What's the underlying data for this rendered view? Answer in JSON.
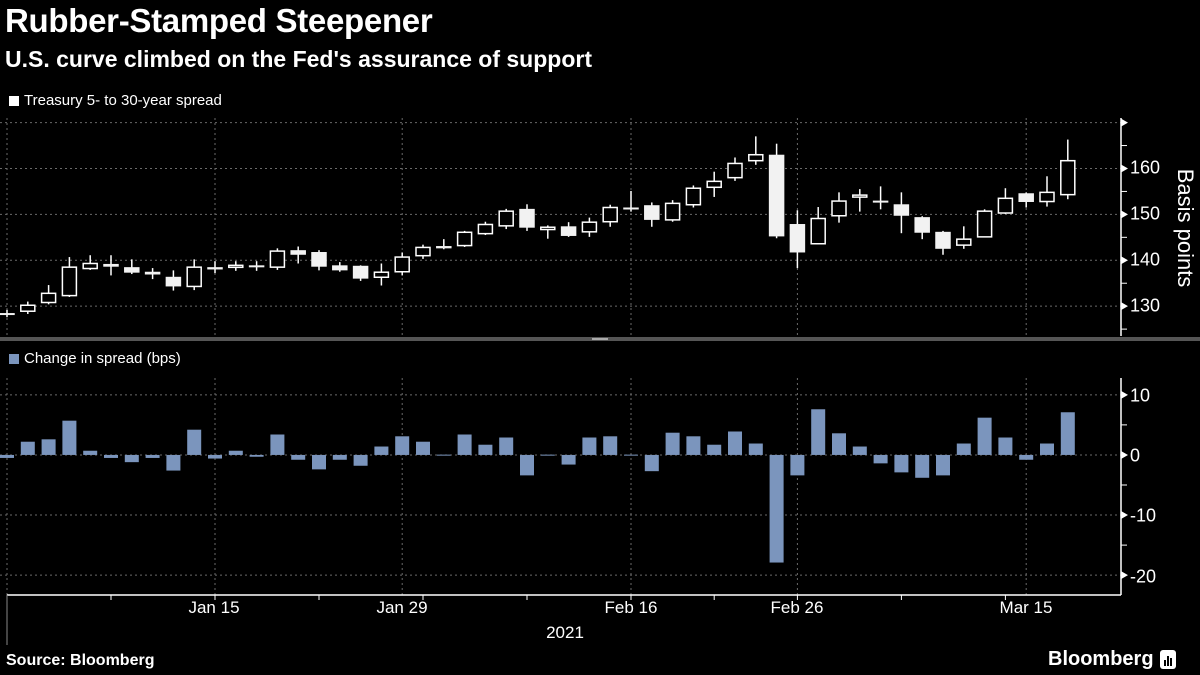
{
  "title": "Rubber-Stamped Steepener",
  "subtitle": "U.S. curve climbed on the Fed's assurance of support",
  "source": "Source: Bloomberg",
  "logo": "Bloomberg",
  "colors": {
    "background": "#000000",
    "candle": "#ffffff",
    "bar": "#7b95bd",
    "grid": "#6a6a6a"
  },
  "chart_data": [
    {
      "type": "candlestick",
      "legend": "Treasury 5- to 30-year spread",
      "ylabel": "Basis points",
      "ylim": [
        123.5,
        171
      ],
      "yticks": [
        130,
        140,
        150,
        160
      ],
      "grid": true,
      "legend_placement": "top-left",
      "columns": [
        "date",
        "open",
        "high",
        "low",
        "close"
      ],
      "candles": [
        [
          "2020-12-31",
          128.5,
          129.2,
          127.6,
          128.2
        ],
        [
          "2021-01-04",
          128.9,
          131.0,
          128.3,
          130.2
        ],
        [
          "2021-01-05",
          130.8,
          134.6,
          130.4,
          132.8
        ],
        [
          "2021-01-06",
          132.3,
          140.7,
          132.0,
          138.5
        ],
        [
          "2021-01-07",
          138.2,
          141.1,
          137.9,
          139.3
        ],
        [
          "2021-01-08",
          139.2,
          141.1,
          136.7,
          138.6
        ],
        [
          "2021-01-11",
          138.5,
          140.2,
          137.0,
          137.3
        ],
        [
          "2021-01-12",
          137.5,
          138.3,
          135.9,
          136.9
        ],
        [
          "2021-01-13",
          136.4,
          137.8,
          133.4,
          134.3
        ],
        [
          "2021-01-14",
          134.3,
          140.2,
          133.5,
          138.5
        ],
        [
          "2021-01-15",
          138.5,
          139.8,
          137.2,
          138.0
        ],
        [
          "2021-01-19",
          138.7,
          139.8,
          137.7,
          138.9
        ],
        [
          "2021-01-20",
          138.9,
          139.8,
          137.7,
          138.5
        ],
        [
          "2021-01-21",
          138.5,
          142.6,
          137.9,
          142.0
        ],
        [
          "2021-01-22",
          142.2,
          143.0,
          139.3,
          141.2
        ],
        [
          "2021-01-25",
          141.8,
          142.2,
          137.8,
          138.6
        ],
        [
          "2021-01-26",
          138.9,
          139.6,
          137.5,
          137.8
        ],
        [
          "2021-01-27",
          138.8,
          138.9,
          135.5,
          136.0
        ],
        [
          "2021-01-28",
          136.3,
          139.3,
          134.5,
          137.4
        ],
        [
          "2021-01-29",
          137.5,
          141.7,
          136.7,
          140.7
        ],
        [
          "2021-02-01",
          141.0,
          143.4,
          140.3,
          142.8
        ],
        [
          "2021-02-02",
          143.1,
          144.6,
          142.4,
          142.6
        ],
        [
          "2021-02-03",
          143.2,
          146.4,
          142.9,
          146.1
        ],
        [
          "2021-02-04",
          145.8,
          148.4,
          145.5,
          147.8
        ],
        [
          "2021-02-05",
          147.5,
          151.2,
          146.8,
          150.7
        ],
        [
          "2021-02-08",
          151.2,
          152.2,
          146.4,
          147.1
        ],
        [
          "2021-02-09",
          146.7,
          147.6,
          144.7,
          147.2
        ],
        [
          "2021-02-10",
          147.4,
          148.3,
          145.1,
          145.3
        ],
        [
          "2021-02-11",
          146.2,
          149.3,
          145.1,
          148.3
        ],
        [
          "2021-02-12",
          148.4,
          152.1,
          147.3,
          151.5
        ],
        [
          "2021-02-16",
          151.5,
          155.1,
          150.6,
          151.3
        ],
        [
          "2021-02-17",
          152.0,
          152.6,
          147.3,
          148.8
        ],
        [
          "2021-02-18",
          148.8,
          153.1,
          148.4,
          152.4
        ],
        [
          "2021-02-19",
          152.1,
          156.3,
          151.5,
          155.7
        ],
        [
          "2021-02-22",
          155.9,
          159.3,
          153.8,
          157.2
        ],
        [
          "2021-02-23",
          158.0,
          162.4,
          157.3,
          161.1
        ],
        [
          "2021-02-24",
          161.7,
          167.0,
          160.8,
          163.0
        ],
        [
          "2021-02-25",
          163.0,
          165.4,
          144.8,
          145.2
        ],
        [
          "2021-02-26",
          147.9,
          150.9,
          138.3,
          141.7
        ],
        [
          "2021-03-01",
          143.6,
          151.6,
          143.6,
          149.1
        ],
        [
          "2021-03-02",
          149.7,
          154.8,
          148.2,
          152.9
        ],
        [
          "2021-03-03",
          153.8,
          155.5,
          150.6,
          154.2
        ],
        [
          "2021-03-04",
          153.0,
          156.1,
          151.1,
          152.8
        ],
        [
          "2021-03-05",
          152.2,
          154.8,
          145.9,
          149.7
        ],
        [
          "2021-03-08",
          149.4,
          149.6,
          144.6,
          146.0
        ],
        [
          "2021-03-09",
          146.2,
          146.4,
          141.2,
          142.5
        ],
        [
          "2021-03-10",
          143.3,
          147.4,
          142.5,
          144.6
        ],
        [
          "2021-03-11",
          145.1,
          151.1,
          145.1,
          150.7
        ],
        [
          "2021-03-12",
          150.3,
          155.7,
          150.1,
          153.5
        ],
        [
          "2021-03-15",
          154.6,
          154.8,
          151.5,
          152.7
        ],
        [
          "2021-03-16",
          152.8,
          158.3,
          151.7,
          154.8
        ],
        [
          "2021-03-17",
          154.3,
          166.3,
          153.3,
          161.7
        ]
      ]
    },
    {
      "type": "bar",
      "legend": "Change in spread (bps)",
      "ylim": [
        -23.3,
        12.8
      ],
      "yticks": [
        10,
        0,
        -10,
        -20
      ],
      "grid": true,
      "legend_placement": "top-left",
      "values": [
        -0.5,
        2.2,
        2.6,
        5.7,
        0.7,
        -0.5,
        -1.2,
        -0.5,
        -2.6,
        4.2,
        -0.6,
        0.7,
        -0.3,
        3.4,
        -0.8,
        -2.4,
        -0.8,
        -1.8,
        1.4,
        3.1,
        2.2,
        0.05,
        3.4,
        1.7,
        2.9,
        -3.4,
        0.05,
        -1.6,
        2.9,
        3.1,
        0.05,
        -2.7,
        3.7,
        3.1,
        1.7,
        3.9,
        1.9,
        -17.9,
        -3.4,
        7.6,
        3.6,
        1.4,
        -1.4,
        -2.9,
        -3.8,
        -3.4,
        1.9,
        6.2,
        2.9,
        -0.8,
        1.9,
        7.1
      ]
    }
  ],
  "xaxis": {
    "ticks": [
      {
        "label": "Jan 15",
        "date": "2021-01-15"
      },
      {
        "label": "Jan 29",
        "date": "2021-01-29"
      },
      {
        "label": "Feb 16",
        "date": "2021-02-16"
      },
      {
        "label": "Feb 26",
        "date": "2021-02-26"
      },
      {
        "label": "Mar 15",
        "date": "2021-03-15"
      }
    ],
    "year": "2021"
  },
  "top_axis_labels": [
    "160",
    "150",
    "140",
    "130"
  ],
  "bottom_axis_labels": [
    "10",
    "0",
    "-10",
    "-20"
  ]
}
